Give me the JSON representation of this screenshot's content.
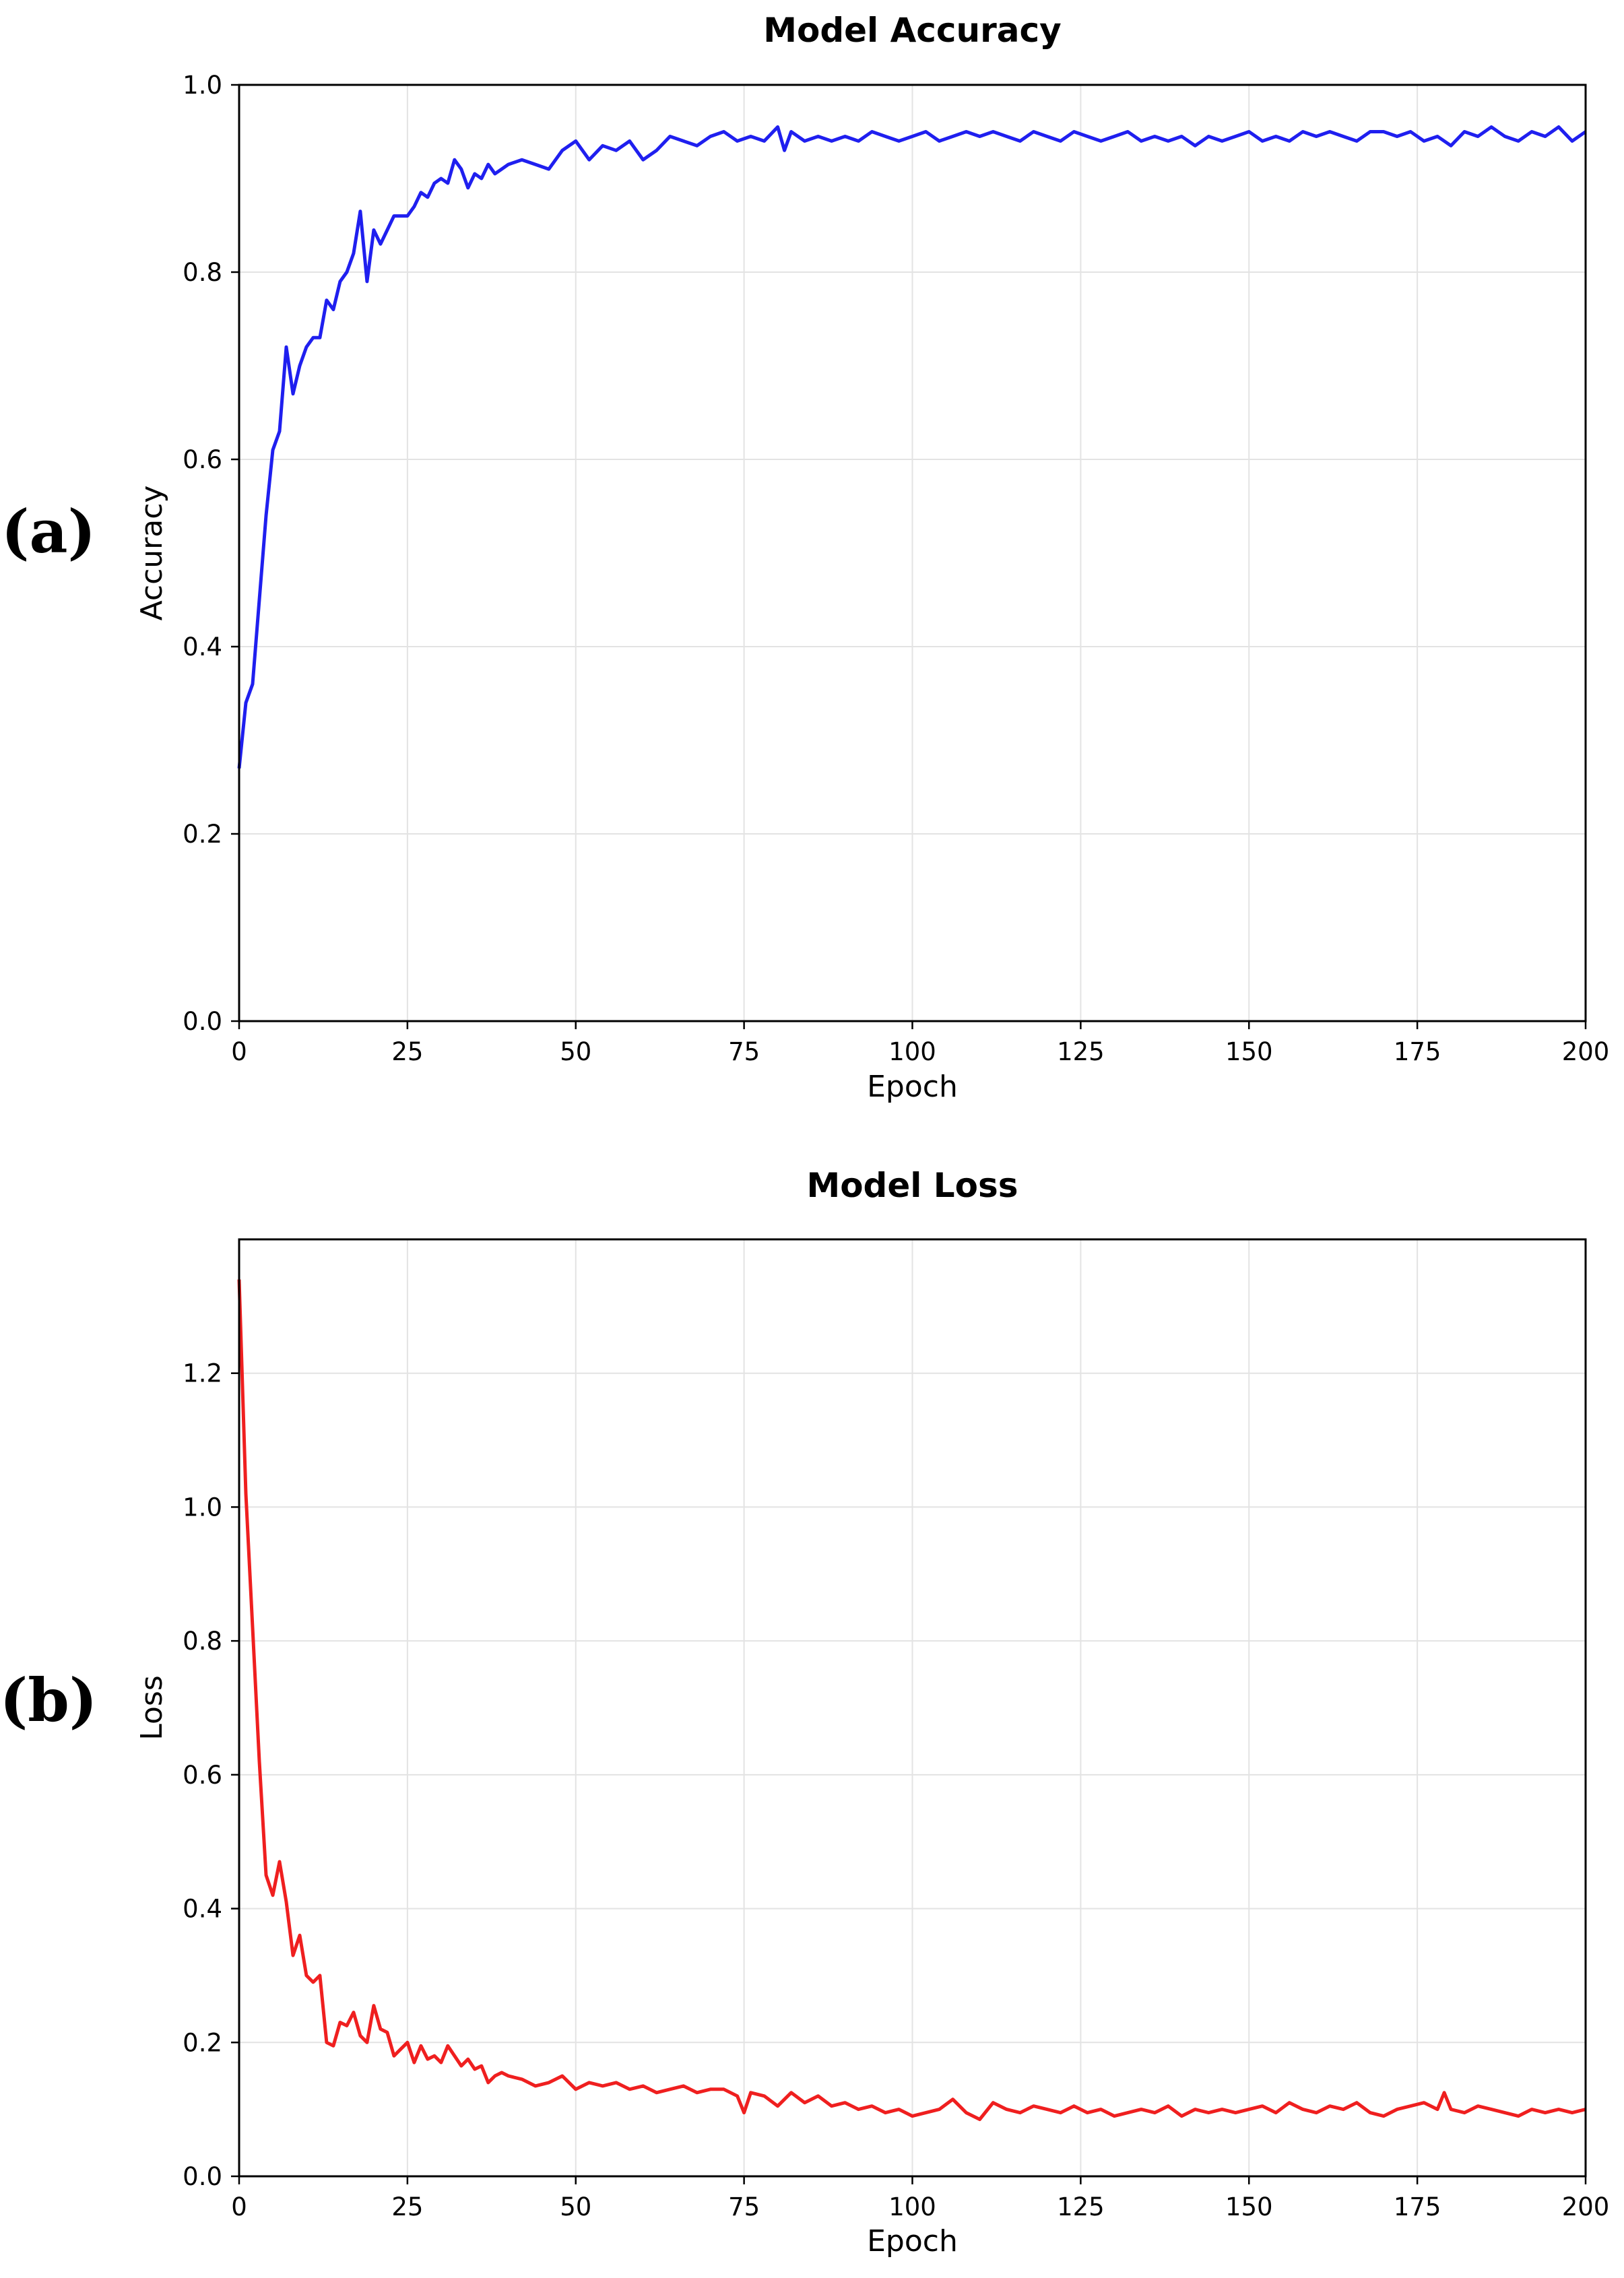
{
  "chart_data": [
    {
      "panel_label": "(a)",
      "type": "line",
      "title": "Model Accuracy",
      "xlabel": "Epoch",
      "ylabel": "Accuracy",
      "xlim": [
        0,
        200
      ],
      "ylim": [
        0,
        1.0
      ],
      "xticks": [
        0,
        25,
        50,
        75,
        100,
        125,
        150,
        175,
        200
      ],
      "yticks": [
        0.0,
        0.2,
        0.4,
        0.6,
        0.8,
        1.0
      ],
      "xtick_labels": [
        "0",
        "25",
        "50",
        "75",
        "100",
        "125",
        "150",
        "175",
        "200"
      ],
      "ytick_labels": [
        "0.0",
        "0.2",
        "0.4",
        "0.6",
        "0.8",
        "1.0"
      ],
      "grid": true,
      "series": [
        {
          "color": "#1f1fef",
          "x": [
            0,
            1,
            2,
            3,
            4,
            5,
            6,
            7,
            8,
            9,
            10,
            11,
            12,
            13,
            14,
            15,
            16,
            17,
            18,
            19,
            20,
            21,
            22,
            23,
            24,
            25,
            26,
            27,
            28,
            29,
            30,
            31,
            32,
            33,
            34,
            35,
            36,
            37,
            38,
            39,
            40,
            42,
            44,
            46,
            48,
            50,
            52,
            54,
            56,
            58,
            60,
            62,
            64,
            66,
            68,
            70,
            72,
            74,
            76,
            78,
            80,
            81,
            82,
            84,
            86,
            88,
            90,
            92,
            94,
            96,
            98,
            100,
            102,
            104,
            106,
            108,
            110,
            112,
            114,
            116,
            118,
            120,
            122,
            124,
            126,
            128,
            130,
            132,
            134,
            136,
            138,
            140,
            142,
            144,
            146,
            148,
            150,
            152,
            154,
            156,
            158,
            160,
            162,
            164,
            166,
            168,
            170,
            172,
            174,
            176,
            178,
            180,
            182,
            184,
            186,
            188,
            190,
            192,
            194,
            196,
            198,
            200
          ],
          "y": [
            0.27,
            0.34,
            0.36,
            0.45,
            0.54,
            0.61,
            0.63,
            0.72,
            0.67,
            0.7,
            0.72,
            0.73,
            0.73,
            0.77,
            0.76,
            0.79,
            0.8,
            0.82,
            0.865,
            0.79,
            0.845,
            0.83,
            0.845,
            0.86,
            0.86,
            0.86,
            0.87,
            0.885,
            0.88,
            0.895,
            0.9,
            0.895,
            0.92,
            0.91,
            0.89,
            0.905,
            0.9,
            0.915,
            0.905,
            0.91,
            0.915,
            0.92,
            0.915,
            0.91,
            0.93,
            0.94,
            0.92,
            0.935,
            0.93,
            0.94,
            0.92,
            0.93,
            0.945,
            0.94,
            0.935,
            0.945,
            0.95,
            0.94,
            0.945,
            0.94,
            0.955,
            0.93,
            0.95,
            0.94,
            0.945,
            0.94,
            0.945,
            0.94,
            0.95,
            0.945,
            0.94,
            0.945,
            0.95,
            0.94,
            0.945,
            0.95,
            0.945,
            0.95,
            0.945,
            0.94,
            0.95,
            0.945,
            0.94,
            0.95,
            0.945,
            0.94,
            0.945,
            0.95,
            0.94,
            0.945,
            0.94,
            0.945,
            0.935,
            0.945,
            0.94,
            0.945,
            0.95,
            0.94,
            0.945,
            0.94,
            0.95,
            0.945,
            0.95,
            0.945,
            0.94,
            0.95,
            0.95,
            0.945,
            0.95,
            0.94,
            0.945,
            0.935,
            0.95,
            0.945,
            0.955,
            0.945,
            0.94,
            0.95,
            0.945,
            0.955,
            0.94,
            0.95
          ]
        }
      ]
    },
    {
      "panel_label": "(b)",
      "type": "line",
      "title": "Model Loss",
      "xlabel": "Epoch",
      "ylabel": "Loss",
      "xlim": [
        0,
        200
      ],
      "ylim": [
        0,
        1.4
      ],
      "xticks": [
        0,
        25,
        50,
        75,
        100,
        125,
        150,
        175,
        200
      ],
      "yticks": [
        0.0,
        0.2,
        0.4,
        0.6,
        0.8,
        1.0,
        1.2
      ],
      "xtick_labels": [
        "0",
        "25",
        "50",
        "75",
        "100",
        "125",
        "150",
        "175",
        "200"
      ],
      "ytick_labels": [
        "0.0",
        "0.2",
        "0.4",
        "0.6",
        "0.8",
        "1.0",
        "1.2"
      ],
      "grid": true,
      "series": [
        {
          "color": "#ef1f1f",
          "x": [
            0,
            1,
            2,
            3,
            4,
            5,
            6,
            7,
            8,
            9,
            10,
            11,
            12,
            13,
            14,
            15,
            16,
            17,
            18,
            19,
            20,
            21,
            22,
            23,
            24,
            25,
            26,
            27,
            28,
            29,
            30,
            31,
            32,
            33,
            34,
            35,
            36,
            37,
            38,
            39,
            40,
            42,
            44,
            46,
            48,
            50,
            52,
            54,
            56,
            58,
            60,
            62,
            64,
            66,
            68,
            70,
            72,
            74,
            75,
            76,
            78,
            80,
            82,
            84,
            86,
            88,
            90,
            92,
            94,
            96,
            98,
            100,
            102,
            104,
            106,
            108,
            110,
            112,
            114,
            116,
            118,
            120,
            122,
            124,
            126,
            128,
            130,
            132,
            134,
            136,
            138,
            140,
            142,
            144,
            146,
            148,
            150,
            152,
            154,
            156,
            158,
            160,
            162,
            164,
            166,
            168,
            170,
            172,
            174,
            176,
            178,
            179,
            180,
            182,
            184,
            186,
            188,
            190,
            192,
            194,
            196,
            198,
            200
          ],
          "y": [
            1.34,
            1.02,
            0.82,
            0.62,
            0.45,
            0.42,
            0.47,
            0.41,
            0.33,
            0.36,
            0.3,
            0.29,
            0.3,
            0.2,
            0.195,
            0.23,
            0.225,
            0.245,
            0.21,
            0.2,
            0.255,
            0.22,
            0.215,
            0.18,
            0.19,
            0.2,
            0.17,
            0.195,
            0.175,
            0.18,
            0.17,
            0.195,
            0.18,
            0.165,
            0.175,
            0.16,
            0.165,
            0.14,
            0.15,
            0.155,
            0.15,
            0.145,
            0.135,
            0.14,
            0.15,
            0.13,
            0.14,
            0.135,
            0.14,
            0.13,
            0.135,
            0.125,
            0.13,
            0.135,
            0.125,
            0.13,
            0.13,
            0.12,
            0.095,
            0.125,
            0.12,
            0.105,
            0.125,
            0.11,
            0.12,
            0.105,
            0.11,
            0.1,
            0.105,
            0.095,
            0.1,
            0.09,
            0.095,
            0.1,
            0.115,
            0.095,
            0.085,
            0.11,
            0.1,
            0.095,
            0.105,
            0.1,
            0.095,
            0.105,
            0.095,
            0.1,
            0.09,
            0.095,
            0.1,
            0.095,
            0.105,
            0.09,
            0.1,
            0.095,
            0.1,
            0.095,
            0.1,
            0.105,
            0.095,
            0.11,
            0.1,
            0.095,
            0.105,
            0.1,
            0.11,
            0.095,
            0.09,
            0.1,
            0.105,
            0.11,
            0.1,
            0.125,
            0.1,
            0.095,
            0.105,
            0.1,
            0.095,
            0.09,
            0.1,
            0.095,
            0.1,
            0.095,
            0.1
          ]
        }
      ]
    }
  ]
}
